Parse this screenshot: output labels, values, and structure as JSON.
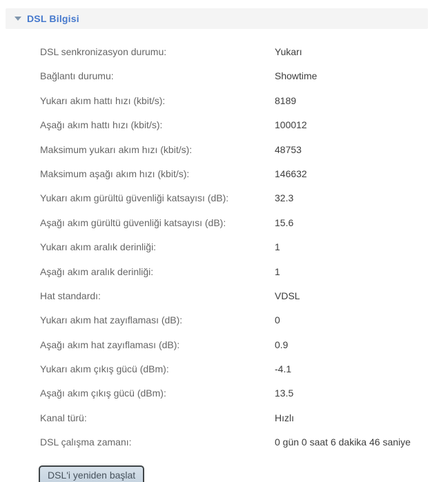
{
  "panel": {
    "title": "DSL Bilgisi",
    "collapse_icon": "triangle-down-icon"
  },
  "rows": [
    {
      "label": "DSL senkronizasyon durumu:",
      "value": "Yukarı"
    },
    {
      "label": "Bağlantı durumu:",
      "value": "Showtime"
    },
    {
      "label": "Yukarı akım hattı hızı (kbit/s):",
      "value": "8189"
    },
    {
      "label": "Aşağı akım hattı hızı (kbit/s):",
      "value": "100012"
    },
    {
      "label": "Maksimum yukarı akım hızı (kbit/s):",
      "value": "48753"
    },
    {
      "label": "Maksimum aşağı akım hızı (kbit/s):",
      "value": "146632"
    },
    {
      "label": "Yukarı akım gürültü güvenliği katsayısı (dB):",
      "value": "32.3"
    },
    {
      "label": "Aşağı akım gürültü güvenliği katsayısı (dB):",
      "value": "15.6"
    },
    {
      "label": "Yukarı akım aralık derinliği:",
      "value": "1"
    },
    {
      "label": "Aşağı akım aralık derinliği:",
      "value": "1"
    },
    {
      "label": "Hat standardı:",
      "value": "VDSL"
    },
    {
      "label": "Yukarı akım hat zayıflaması (dB):",
      "value": "0"
    },
    {
      "label": "Aşağı akım hat zayıflaması (dB):",
      "value": "0.9"
    },
    {
      "label": "Yukarı akım çıkış gücü (dBm):",
      "value": "-4.1"
    },
    {
      "label": "Aşağı akım çıkış gücü (dBm):",
      "value": "13.5"
    },
    {
      "label": "Kanal türü:",
      "value": "Hızlı"
    },
    {
      "label": "DSL çalışma zamanı:",
      "value": "0 gün 0 saat 6 dakika 46 saniye"
    }
  ],
  "button": {
    "label": "DSL'i yeniden başlat"
  },
  "colors": {
    "header_bg": "#f4f4f4",
    "title_blue": "#4679cd",
    "arrow_gray_blue": "#8096ad",
    "label_gray": "#666666",
    "value_dark": "#3d3d3d",
    "button_bg": "#cdd9e4",
    "button_border": "#3f4447"
  }
}
